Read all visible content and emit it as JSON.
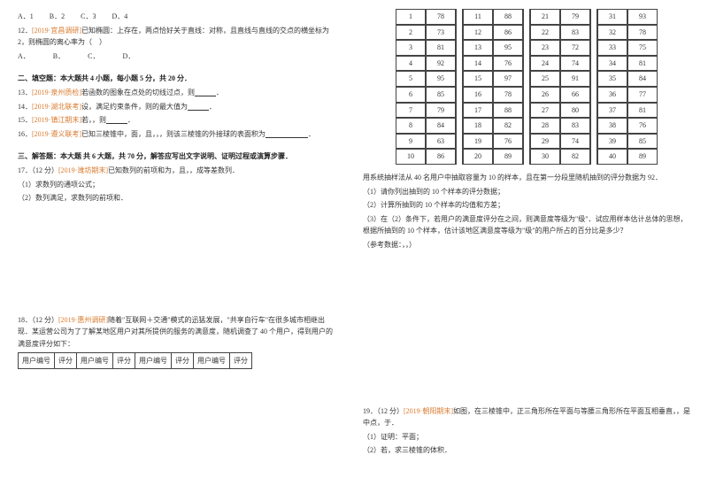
{
  "left": {
    "options": [
      "A．1",
      "B．2",
      "C．3",
      "D．4"
    ],
    "q12": "12．[2019·宜昌调研]已知椭圆：上存在，两点恰好关于直线：对称，且直线与直线的交点的横坐标为2，则椭圆的离心率为（　）",
    "q12opts": [
      "A．",
      "B．",
      "C．",
      "D．"
    ],
    "sec2": "二、填空题：本大题共 4 小题，每小题 5 分，共 20 分．",
    "q13": "13．[2019·泉州质检]若函数的图象在点处的切线过点，则______．",
    "q14": "14．[2019·湖北联考]设，满足约束条件，则的最大值为______．",
    "q15": "15．[2019·镇江期末]若，，则______．",
    "q16": "16．[2019·遵义联考]已知三棱锥中，面，且，，，则该三棱锥的外接球的表面积为__________．",
    "sec3": "三、解答题：本大题 共 6 大题，共 70 分，解答应写出文字说明、证明过程或演算步骤．",
    "q17": "17．（12 分）[2019·潍坊期末]已知数列的前项和为，且，，成等差数列．",
    "q17a": "（1）求数列的通项公式；",
    "q17b": "（2）数列满足，求数列的前项和．",
    "q18": "18．（12 分）[2019·惠州调研]随着\"互联网＋交通\"模式的迅猛发展，\"共享自行车\"在很多城市相继出现．某运营公司为了了解某地区用户对其所提供的服务的满意度，随机调查了 40 个用户，得到用户的满意度评分如下：",
    "tblhead": [
      "用户编号",
      "评分",
      "用户编号",
      "评分",
      "用户编号",
      "评分",
      "用户编号",
      "评分"
    ]
  },
  "right": {
    "grid": [
      [
        "1",
        "78",
        "",
        "11",
        "88",
        "",
        "21",
        "79",
        "",
        "31",
        "93"
      ],
      [
        "2",
        "73",
        "",
        "12",
        "86",
        "",
        "22",
        "83",
        "",
        "32",
        "78"
      ],
      [
        "3",
        "81",
        "",
        "13",
        "95",
        "",
        "23",
        "72",
        "",
        "33",
        "75"
      ],
      [
        "4",
        "92",
        "",
        "14",
        "76",
        "",
        "24",
        "74",
        "",
        "34",
        "81"
      ],
      [
        "5",
        "95",
        "",
        "15",
        "97",
        "",
        "25",
        "91",
        "",
        "35",
        "84"
      ],
      [
        "6",
        "85",
        "",
        "16",
        "78",
        "",
        "26",
        "66",
        "",
        "36",
        "77"
      ],
      [
        "7",
        "79",
        "",
        "17",
        "88",
        "",
        "27",
        "80",
        "",
        "37",
        "81"
      ],
      [
        "8",
        "84",
        "",
        "18",
        "82",
        "",
        "28",
        "83",
        "",
        "38",
        "76"
      ],
      [
        "9",
        "63",
        "",
        "19",
        "76",
        "",
        "29",
        "74",
        "",
        "39",
        "85"
      ],
      [
        "10",
        "86",
        "",
        "20",
        "89",
        "",
        "30",
        "82",
        "",
        "40",
        "89"
      ]
    ],
    "p1": "用系统抽样法从 40 名用户中抽取容量为 10 的样本，且在第一分段里随机抽到的评分数据为 92．",
    "p2": "（1）请你列出抽到的 10 个样本的评分数据；",
    "p3": "（2）计算所抽到的 10 个样本的均值和方差；",
    "p4": "（3）在（2）条件下，若用户的满意度评分在之间，则满意度等级为\"级\"．试应用样本估计总体的思想，根据所抽到的 10 个样本，估计该地区满意度等级为\"级\"的用户所占的百分比是多少？",
    "p5": "（参考数据：，，）",
    "q19": "19．（12 分）[2019·朝阳期末]如图，在三棱锥中，正三角形所在平面与等腰三角形所在平面互相垂直，，是中点，于．",
    "q19a": "（1）证明：平面；",
    "q19b": "（2）若，求三棱锥的体积．"
  }
}
